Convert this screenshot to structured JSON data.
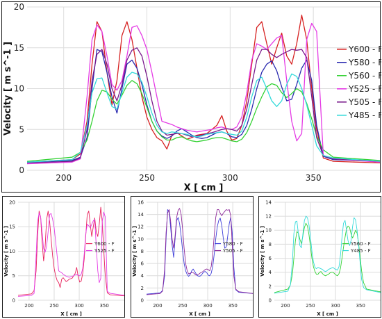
{
  "chart_data": [
    {
      "type": "line",
      "xlabel": "X [ cm ]",
      "ylabel": "Velocity [ m s^-1 ]",
      "xlim": [
        178,
        390
      ],
      "ylim": [
        0,
        20
      ],
      "xticks": [
        200,
        250,
        300,
        350
      ],
      "yticks": [
        0,
        5,
        10,
        15,
        20
      ],
      "grid": true,
      "legend_position": "right",
      "series": [
        {
          "name": "Y600 - F",
          "color": "#d62020",
          "x": [
            178,
            205,
            210,
            214,
            217,
            220,
            223,
            226,
            229,
            232,
            235,
            238,
            241,
            244,
            247,
            250,
            253,
            256,
            259,
            262,
            265,
            268,
            271,
            274,
            277,
            280,
            283,
            286,
            289,
            292,
            295,
            298,
            301,
            304,
            307,
            310,
            313,
            316,
            319,
            322,
            325,
            328,
            331,
            334,
            337,
            340,
            343,
            346,
            349,
            352,
            356,
            362,
            390
          ],
          "y": [
            1,
            1.3,
            2,
            6,
            13,
            18.2,
            17,
            12,
            8,
            11,
            16.5,
            18.2,
            16,
            12.5,
            9,
            6.5,
            5,
            4,
            3.6,
            2.6,
            4.3,
            4.6,
            4.2,
            3.8,
            4,
            4.3,
            4.4,
            4.5,
            5,
            5.5,
            6.7,
            4.8,
            3.7,
            3.9,
            5.5,
            8.5,
            13,
            17.5,
            18.2,
            15.5,
            13,
            15,
            16.8,
            14,
            13,
            15.5,
            19,
            16,
            10,
            5,
            1.5,
            1.1,
            0.9
          ]
        },
        {
          "name": "Y580 - F",
          "color": "#2b2bb0",
          "x": [
            178,
            205,
            210,
            214,
            217,
            220,
            223,
            226,
            229,
            232,
            235,
            238,
            241,
            244,
            247,
            250,
            253,
            256,
            259,
            262,
            265,
            268,
            271,
            274,
            277,
            280,
            283,
            286,
            289,
            292,
            295,
            298,
            301,
            304,
            307,
            310,
            313,
            316,
            319,
            322,
            325,
            328,
            331,
            334,
            337,
            340,
            343,
            346,
            349,
            352,
            356,
            362,
            390
          ],
          "y": [
            1,
            1.2,
            1.6,
            4,
            10,
            14.8,
            14.5,
            12,
            9,
            7,
            10,
            13,
            13.5,
            12.5,
            10.5,
            8,
            6,
            4.8,
            4.2,
            3.9,
            4.2,
            4.8,
            5.1,
            4.7,
            4.3,
            4,
            3.9,
            4,
            4.3,
            4.6,
            4.7,
            4.5,
            4.1,
            4,
            4.4,
            5.5,
            7.5,
            10,
            12,
            13,
            13.4,
            12.2,
            10.2,
            8.5,
            8.7,
            10.5,
            12.5,
            13.5,
            11,
            5.5,
            1.7,
            1.3,
            1.1
          ]
        },
        {
          "name": "Y560 - F",
          "color": "#34d234",
          "x": [
            178,
            205,
            210,
            214,
            217,
            220,
            223,
            226,
            229,
            232,
            235,
            238,
            241,
            244,
            247,
            250,
            253,
            256,
            259,
            262,
            265,
            268,
            271,
            274,
            277,
            280,
            283,
            286,
            289,
            292,
            295,
            298,
            301,
            304,
            307,
            310,
            313,
            316,
            319,
            322,
            325,
            328,
            331,
            334,
            337,
            340,
            343,
            346,
            349,
            352,
            356,
            362,
            390
          ],
          "y": [
            1.1,
            1.6,
            2.2,
            3.7,
            6,
            8.5,
            9.8,
            9.6,
            8.7,
            8.1,
            9.2,
            10.4,
            11,
            10.6,
            9.4,
            7.7,
            6,
            4.8,
            4.1,
            3.7,
            3.7,
            4,
            4.1,
            3.8,
            3.6,
            3.5,
            3.6,
            3.7,
            3.9,
            4,
            4,
            3.8,
            3.6,
            3.5,
            3.8,
            4.6,
            6,
            7.6,
            9,
            10.2,
            10.6,
            10.4,
            9.5,
            8.9,
            9.4,
            10,
            9.6,
            8.2,
            6.3,
            4.2,
            2.5,
            1.6,
            1.2
          ]
        },
        {
          "name": "Y525 - F",
          "color": "#e53be5",
          "x": [
            178,
            205,
            210,
            214,
            217,
            220,
            223,
            226,
            229,
            232,
            235,
            238,
            241,
            244,
            247,
            250,
            253,
            256,
            259,
            262,
            265,
            268,
            271,
            274,
            277,
            280,
            283,
            286,
            289,
            292,
            295,
            298,
            301,
            304,
            307,
            310,
            313,
            316,
            319,
            322,
            325,
            328,
            331,
            334,
            337,
            340,
            343,
            346,
            349,
            352,
            356,
            362,
            390
          ],
          "y": [
            0.8,
            1,
            1.4,
            9,
            16,
            17.8,
            17,
            14,
            10.5,
            9.8,
            11,
            14,
            17.5,
            17.7,
            16.5,
            14.8,
            12,
            9,
            6,
            5.8,
            5.6,
            5.3,
            5.1,
            4.9,
            4.8,
            4.7,
            4.8,
            4.9,
            5,
            5.2,
            5.3,
            5.1,
            5,
            5.3,
            6.5,
            9.5,
            13.5,
            15.5,
            15.2,
            14.8,
            15.5,
            16.2,
            16.5,
            11,
            6,
            3.6,
            4.5,
            16,
            18,
            17,
            1.8,
            1.4,
            1
          ]
        },
        {
          "name": "Y505 - F",
          "color": "#7a1a8c",
          "x": [
            178,
            205,
            210,
            214,
            217,
            220,
            223,
            226,
            229,
            232,
            235,
            238,
            241,
            244,
            247,
            250,
            253,
            256,
            259,
            262,
            265,
            268,
            271,
            274,
            277,
            280,
            283,
            286,
            289,
            292,
            295,
            298,
            301,
            304,
            307,
            310,
            313,
            316,
            319,
            322,
            325,
            328,
            331,
            334,
            337,
            340,
            343,
            346,
            349,
            352,
            356,
            362,
            390
          ],
          "y": [
            0.9,
            1.1,
            1.5,
            5,
            11,
            14.2,
            14.8,
            13,
            10,
            8.5,
            10.5,
            13.5,
            14.7,
            15,
            14,
            11.5,
            8.5,
            6,
            4.8,
            4.3,
            4.4,
            4.5,
            4.5,
            4.3,
            4.1,
            4.2,
            4.3,
            4.5,
            4.6,
            4.8,
            5,
            5.1,
            5,
            4.8,
            5.5,
            7.5,
            10.5,
            13.5,
            14.8,
            14.8,
            14.2,
            13.8,
            14.2,
            14.5,
            14.8,
            14.7,
            14.8,
            13.8,
            9,
            4,
            1.8,
            1.4,
            1.1
          ]
        },
        {
          "name": "Y485 - F",
          "color": "#33dada",
          "x": [
            178,
            205,
            210,
            214,
            217,
            220,
            223,
            226,
            229,
            232,
            235,
            238,
            241,
            244,
            247,
            250,
            253,
            256,
            259,
            262,
            265,
            268,
            271,
            274,
            277,
            280,
            283,
            286,
            289,
            292,
            295,
            298,
            301,
            304,
            307,
            310,
            313,
            316,
            319,
            322,
            325,
            328,
            331,
            334,
            337,
            340,
            343,
            346,
            349,
            352,
            356,
            362,
            390
          ],
          "y": [
            1,
            1.3,
            2.2,
            5.5,
            9.5,
            11.2,
            11.3,
            9.5,
            7.8,
            7.5,
            9.5,
            11.4,
            12,
            11.8,
            10.8,
            9,
            7,
            5.5,
            4.7,
            4.5,
            4.7,
            4.6,
            4.5,
            4.4,
            4.2,
            4.1,
            4.2,
            4.4,
            4.5,
            4.6,
            4.7,
            4.5,
            4.4,
            4.3,
            4.8,
            6.5,
            9,
            11,
            11.4,
            10,
            8.5,
            7.8,
            8.5,
            10.5,
            11.8,
            11.5,
            10,
            8,
            5.5,
            3,
            1.8,
            1.5,
            1.1
          ]
        }
      ]
    },
    {
      "type": "line",
      "xlabel": "X [ cm ]",
      "ylabel": "Velocity [ m s^-1 ]",
      "xlim": [
        178,
        390
      ],
      "ylim": [
        0,
        20
      ],
      "xticks": [
        200,
        250,
        300,
        350
      ],
      "yticks": [
        0,
        5,
        10,
        15,
        20
      ],
      "grid": true,
      "legend_position": "center-right",
      "series_refs": [
        "Y600 - F",
        "Y525 - F"
      ],
      "series_colors": [
        "#e8205a",
        "#e53be5"
      ]
    },
    {
      "type": "line",
      "xlabel": "X [ cm ]",
      "ylabel": "Velocity [ m s^-1 ]",
      "xlim": [
        178,
        390
      ],
      "ylim": [
        0,
        16
      ],
      "xticks": [
        200,
        250,
        300,
        350
      ],
      "yticks": [
        0,
        2,
        4,
        6,
        8,
        10,
        12,
        14,
        16
      ],
      "grid": true,
      "legend_position": "center-right",
      "series_refs": [
        "Y580 - F",
        "Y505 - F"
      ],
      "series_colors": [
        "#3b3bd9",
        "#8e2a9a"
      ]
    },
    {
      "type": "line",
      "xlabel": "X [ cm ]",
      "ylabel": "Velocity [ m s^-1 ]",
      "xlim": [
        178,
        390
      ],
      "ylim": [
        0,
        14
      ],
      "xticks": [
        200,
        250,
        300,
        350
      ],
      "yticks": [
        0,
        2,
        4,
        6,
        8,
        10,
        12,
        14
      ],
      "grid": true,
      "legend_position": "center-right",
      "series_refs": [
        "Y560 - F",
        "Y485 - F"
      ],
      "series_colors": [
        "#34d234",
        "#33dada"
      ]
    }
  ]
}
